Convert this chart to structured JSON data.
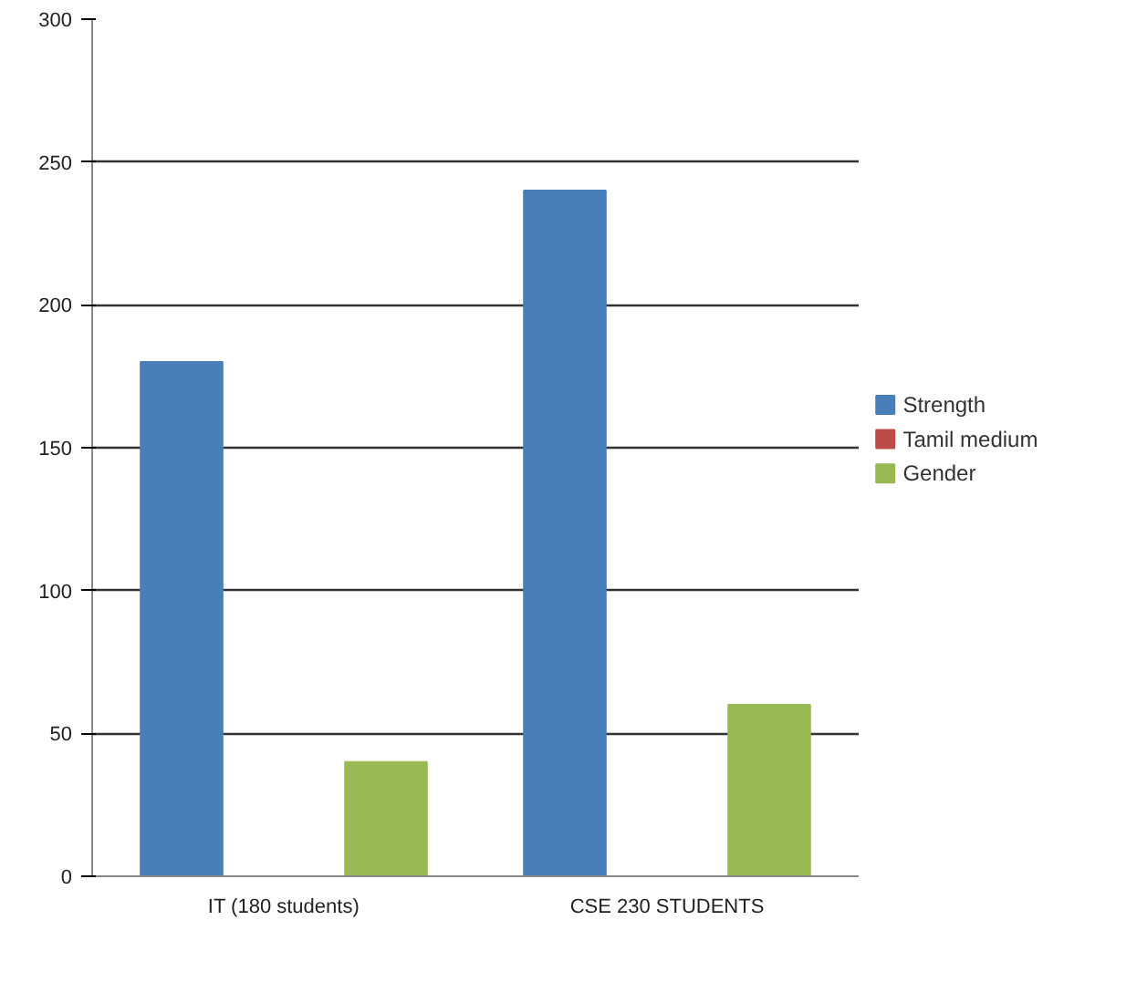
{
  "chart_data": {
    "type": "bar",
    "categories": [
      "IT (180 students)",
      "CSE 230 STUDENTS"
    ],
    "series": [
      {
        "name": "Strength",
        "color": "#4a7ebb",
        "values": [
          180,
          240
        ]
      },
      {
        "name": "Tamil medium",
        "color": "#be4b48",
        "values": [
          0,
          0
        ]
      },
      {
        "name": "Gender",
        "color": "#98b954",
        "values": [
          40,
          60
        ]
      }
    ],
    "ylim": [
      0,
      300
    ],
    "yticks": [
      0,
      50,
      100,
      150,
      200,
      250,
      300
    ],
    "grid": "y",
    "legend": "right"
  }
}
